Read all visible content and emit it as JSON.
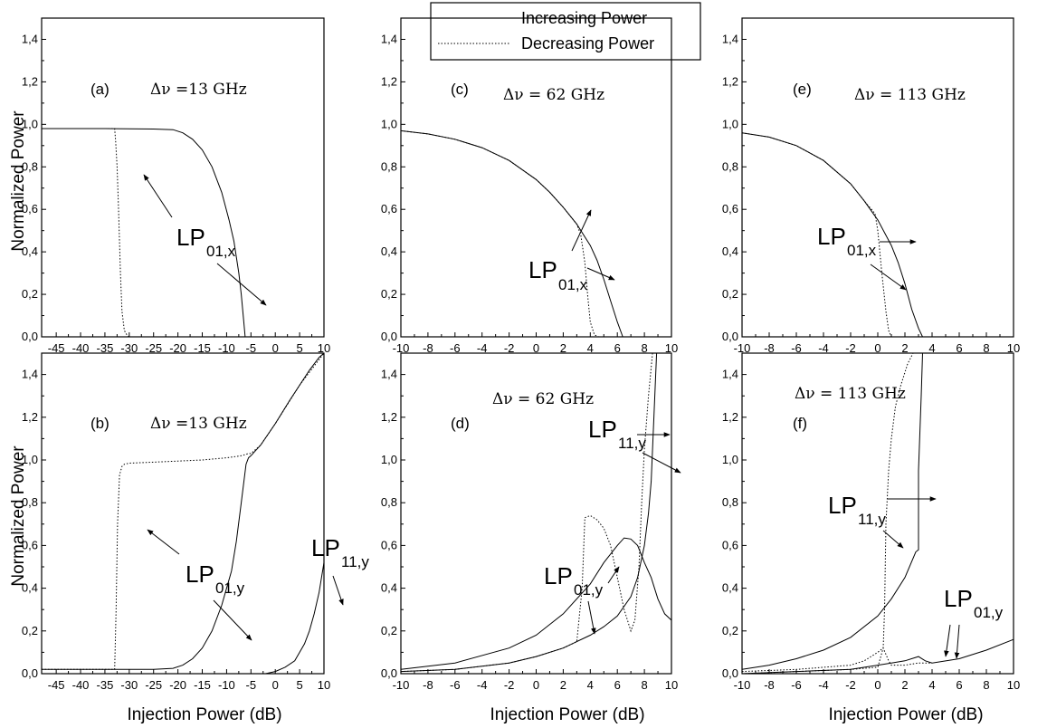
{
  "legend": {
    "entries": [
      {
        "label": "Increasing Power",
        "style": "solid"
      },
      {
        "label": "Decreasing Power",
        "style": "dotted"
      }
    ]
  },
  "chart_data": [
    {
      "id": "a",
      "type": "line",
      "tag": "(a)",
      "dnu_label": "Δν =13 GHz",
      "xlim": [
        -48,
        10
      ],
      "ylim": [
        0,
        1.5
      ],
      "xticks": [
        -45,
        -40,
        -35,
        -30,
        -25,
        -20,
        -15,
        -10,
        -5,
        0,
        5,
        10
      ],
      "xticklabels": [
        "-45",
        "-40",
        "-35",
        "-30",
        "-25",
        "-20",
        "-15",
        "-10",
        "-5",
        "0",
        "5",
        "10"
      ],
      "yticks": [
        0,
        0.2,
        0.4,
        0.6,
        0.8,
        1.0,
        1.2,
        1.4
      ],
      "yticklabels": [
        "0,0",
        "0,2",
        "0,4",
        "0,6",
        "0,8",
        "1,0",
        "1,2",
        "1,4"
      ],
      "ylabel": "Normalized Power",
      "xlabel": "",
      "series": [
        {
          "style": "solid",
          "x": [
            -48,
            -35,
            -25,
            -21,
            -19,
            -17,
            -15,
            -13,
            -11,
            -9.5,
            -8.5,
            -7.5,
            -7,
            -6.5,
            -6.2
          ],
          "y": [
            0.98,
            0.98,
            0.978,
            0.975,
            0.96,
            0.93,
            0.88,
            0.8,
            0.68,
            0.55,
            0.45,
            0.3,
            0.2,
            0.08,
            0.0
          ]
        },
        {
          "style": "dotted",
          "x": [
            -48,
            -33,
            -32.8,
            -32.5,
            -32.2,
            -31.8,
            -31.5,
            -31,
            -30.5,
            -30
          ],
          "y": [
            0.98,
            0.98,
            0.92,
            0.8,
            0.6,
            0.3,
            0.12,
            0.03,
            0.01,
            0.0
          ]
        }
      ],
      "annotations": [
        {
          "text": "LP",
          "sub": "01,x"
        }
      ]
    },
    {
      "id": "b",
      "type": "line",
      "tag": "(b)",
      "dnu_label": "Δν =13 GHz",
      "xlim": [
        -48,
        10
      ],
      "ylim": [
        0,
        1.5
      ],
      "xticks": [
        -45,
        -40,
        -35,
        -30,
        -25,
        -20,
        -15,
        -10,
        -5,
        0,
        5,
        10
      ],
      "xticklabels": [
        "-45",
        "-40",
        "-35",
        "-30",
        "-25",
        "-20",
        "-15",
        "-10",
        "-5",
        "0",
        "5",
        "10"
      ],
      "yticks": [
        0,
        0.2,
        0.4,
        0.6,
        0.8,
        1.0,
        1.2,
        1.4
      ],
      "yticklabels": [
        "0,0",
        "0,2",
        "0,4",
        "0,6",
        "0,8",
        "1,0",
        "1,2",
        "1,4"
      ],
      "ylabel": "Normalized Power",
      "xlabel": "Injection Power (dB)",
      "series": [
        {
          "style": "solid",
          "x": [
            -48,
            -25,
            -21,
            -19,
            -17,
            -15,
            -13,
            -11,
            -9,
            -8,
            -7,
            -6,
            -5.5,
            -5,
            -3,
            0,
            3,
            5,
            7,
            9,
            10
          ],
          "y": [
            0.02,
            0.02,
            0.025,
            0.04,
            0.07,
            0.12,
            0.2,
            0.32,
            0.48,
            0.62,
            0.8,
            0.98,
            1.01,
            1.02,
            1.07,
            1.17,
            1.28,
            1.35,
            1.42,
            1.48,
            1.5
          ]
        },
        {
          "style": "dotted",
          "x": [
            -48,
            -33,
            -32.7,
            -32.4,
            -32,
            -31.5,
            -31,
            -30,
            -25,
            -20,
            -15,
            -10,
            -7,
            -5.5,
            -5,
            -3,
            0,
            5,
            10
          ],
          "y": [
            0.02,
            0.02,
            0.3,
            0.7,
            0.93,
            0.97,
            0.98,
            0.985,
            0.99,
            0.995,
            1.0,
            1.01,
            1.02,
            1.03,
            1.03,
            1.07,
            1.17,
            1.35,
            1.5
          ]
        },
        {
          "style": "solid",
          "x": [
            -48,
            -2,
            0,
            2,
            4,
            5,
            6,
            7,
            8,
            9,
            10
          ],
          "y": [
            0.0,
            0.0,
            0.01,
            0.03,
            0.06,
            0.1,
            0.14,
            0.2,
            0.28,
            0.38,
            0.52
          ]
        }
      ],
      "annotations": [
        {
          "text": "LP",
          "sub": "01,y"
        },
        {
          "text": "LP",
          "sub": "11,y"
        }
      ]
    },
    {
      "id": "c",
      "type": "line",
      "tag": "(c)",
      "dnu_label": "Δν = 62 GHz",
      "xlim": [
        -10,
        10
      ],
      "ylim": [
        0,
        1.5
      ],
      "xticks": [
        -10,
        -8,
        -6,
        -4,
        -2,
        0,
        2,
        4,
        6,
        8,
        10
      ],
      "xticklabels": [
        "-10",
        "-8",
        "-6",
        "-4",
        "-2",
        "0",
        "2",
        "4",
        "6",
        "8",
        "10"
      ],
      "yticks": [
        0,
        0.2,
        0.4,
        0.6,
        0.8,
        1.0,
        1.2,
        1.4
      ],
      "yticklabels": [
        "0,0",
        "0,2",
        "0,4",
        "0,6",
        "0,8",
        "1,0",
        "1,2",
        "1,4"
      ],
      "ylabel": "",
      "xlabel": "",
      "series": [
        {
          "style": "solid",
          "x": [
            -10,
            -8,
            -6,
            -4,
            -2,
            0,
            1,
            2,
            3,
            4,
            4.5,
            5,
            5.5,
            6,
            6.4
          ],
          "y": [
            0.97,
            0.955,
            0.93,
            0.89,
            0.83,
            0.74,
            0.68,
            0.61,
            0.53,
            0.43,
            0.36,
            0.27,
            0.17,
            0.07,
            0.0
          ]
        },
        {
          "style": "dotted",
          "x": [
            -10,
            -8,
            -6,
            -4,
            -2,
            0,
            1,
            2,
            3,
            3.3,
            3.6,
            3.8,
            4,
            4.3,
            4.6
          ],
          "y": [
            0.97,
            0.955,
            0.93,
            0.89,
            0.83,
            0.74,
            0.68,
            0.61,
            0.53,
            0.48,
            0.35,
            0.2,
            0.07,
            0.01,
            0.0
          ]
        }
      ],
      "annotations": [
        {
          "text": "LP",
          "sub": "01,x"
        }
      ]
    },
    {
      "id": "d",
      "type": "line",
      "tag": "(d)",
      "dnu_label": "Δν = 62 GHz",
      "xlim": [
        -10,
        10
      ],
      "ylim": [
        0,
        1.5
      ],
      "xticks": [
        -10,
        -8,
        -6,
        -4,
        -2,
        0,
        2,
        4,
        6,
        8,
        10
      ],
      "xticklabels": [
        "-10",
        "-8",
        "-6",
        "-4",
        "-2",
        "0",
        "2",
        "4",
        "6",
        "8",
        "10"
      ],
      "yticks": [
        0,
        0.2,
        0.4,
        0.6,
        0.8,
        1.0,
        1.2,
        1.4
      ],
      "yticklabels": [
        "0,0",
        "0,2",
        "0,4",
        "0,6",
        "0,8",
        "1,0",
        "1,2",
        "1,4"
      ],
      "ylabel": "",
      "xlabel": "Injection Power (dB)",
      "series": [
        {
          "style": "solid",
          "x": [
            -10,
            -6,
            -2,
            0,
            2,
            4,
            5,
            6,
            6.5,
            7,
            7.5,
            8,
            8.5,
            9,
            9.5,
            10
          ],
          "y": [
            0.02,
            0.05,
            0.12,
            0.18,
            0.28,
            0.42,
            0.52,
            0.6,
            0.635,
            0.63,
            0.6,
            0.52,
            0.45,
            0.35,
            0.28,
            0.25
          ]
        },
        {
          "style": "solid",
          "x": [
            -10,
            -6,
            -2,
            0,
            2,
            4,
            5,
            6,
            7,
            7.5,
            8,
            8.3,
            8.5,
            8.7,
            8.9
          ],
          "y": [
            0.01,
            0.02,
            0.05,
            0.08,
            0.12,
            0.18,
            0.22,
            0.27,
            0.36,
            0.45,
            0.6,
            0.75,
            0.9,
            1.2,
            1.5
          ]
        },
        {
          "style": "dotted",
          "x": [
            -10,
            -6,
            -2,
            0,
            2,
            3,
            3.4,
            3.6,
            4,
            4.5,
            5,
            5.5,
            6,
            6.5,
            7,
            7.3,
            7.6,
            7.8,
            8,
            8.3,
            8.6
          ],
          "y": [
            0.01,
            0.02,
            0.05,
            0.08,
            0.12,
            0.15,
            0.4,
            0.73,
            0.74,
            0.72,
            0.68,
            0.6,
            0.45,
            0.3,
            0.2,
            0.25,
            0.5,
            0.8,
            1.05,
            1.3,
            1.5
          ]
        }
      ],
      "annotations": [
        {
          "text": "LP",
          "sub": "11,y"
        },
        {
          "text": "LP",
          "sub": "01,y"
        }
      ]
    },
    {
      "id": "e",
      "type": "line",
      "tag": "(e)",
      "dnu_label": "Δν = 113 GHz",
      "xlim": [
        -10,
        10
      ],
      "ylim": [
        0,
        1.5
      ],
      "xticks": [
        -10,
        -8,
        -6,
        -4,
        -2,
        0,
        2,
        4,
        6,
        8,
        10
      ],
      "xticklabels": [
        "-10",
        "-8",
        "-6",
        "-4",
        "-2",
        "0",
        "2",
        "4",
        "6",
        "8",
        "10"
      ],
      "yticks": [
        0,
        0.2,
        0.4,
        0.6,
        0.8,
        1.0,
        1.2,
        1.4
      ],
      "yticklabels": [
        "0,0",
        "0,2",
        "0,4",
        "0,6",
        "0,8",
        "1,0",
        "1,2",
        "1,4"
      ],
      "ylabel": "",
      "xlabel": "",
      "series": [
        {
          "style": "solid",
          "x": [
            -10,
            -8,
            -6,
            -4,
            -2,
            -1,
            0,
            1,
            1.5,
            2,
            2.5,
            3,
            3.3
          ],
          "y": [
            0.96,
            0.94,
            0.9,
            0.83,
            0.72,
            0.64,
            0.55,
            0.43,
            0.35,
            0.25,
            0.13,
            0.04,
            0.0
          ]
        },
        {
          "style": "dotted",
          "x": [
            -10,
            -8,
            -6,
            -4,
            -2,
            -1,
            -0.2,
            0,
            0.3,
            0.6,
            0.8,
            1
          ],
          "y": [
            0.96,
            0.94,
            0.9,
            0.83,
            0.72,
            0.64,
            0.58,
            0.5,
            0.3,
            0.12,
            0.03,
            0.0
          ]
        }
      ],
      "annotations": [
        {
          "text": "LP",
          "sub": "01,x"
        }
      ]
    },
    {
      "id": "f",
      "type": "line",
      "tag": "(f)",
      "dnu_label": "Δν = 113 GHz",
      "xlim": [
        -10,
        10
      ],
      "ylim": [
        0,
        1.5
      ],
      "xticks": [
        -10,
        -8,
        -6,
        -4,
        -2,
        0,
        2,
        4,
        6,
        8,
        10
      ],
      "xticklabels": [
        "-10",
        "-8",
        "-6",
        "-4",
        "-2",
        "0",
        "2",
        "4",
        "6",
        "8",
        "10"
      ],
      "yticks": [
        0,
        0.2,
        0.4,
        0.6,
        0.8,
        1.0,
        1.2,
        1.4
      ],
      "yticklabels": [
        "0,0",
        "0,2",
        "0,4",
        "0,6",
        "0,8",
        "1,0",
        "1,2",
        "1,4"
      ],
      "ylabel": "",
      "xlabel": "Injection Power (dB)",
      "series": [
        {
          "style": "solid",
          "x": [
            -10,
            -8,
            -6,
            -4,
            -2,
            0,
            1,
            2,
            2.8,
            3,
            3,
            3.2,
            3.3
          ],
          "y": [
            0.02,
            0.04,
            0.07,
            0.11,
            0.17,
            0.27,
            0.35,
            0.45,
            0.57,
            0.58,
            0.95,
            1.3,
            1.5
          ]
        },
        {
          "style": "dotted",
          "x": [
            -10,
            -6,
            -2,
            -1,
            0,
            0.4,
            0.5,
            0.6,
            0.8,
            1,
            1.3,
            1.7,
            2.2,
            2.6
          ],
          "y": [
            0.01,
            0.02,
            0.04,
            0.06,
            0.1,
            0.12,
            0.3,
            0.7,
            0.95,
            1.1,
            1.25,
            1.35,
            1.45,
            1.5
          ]
        },
        {
          "style": "solid",
          "x": [
            -10,
            -6,
            -2,
            0,
            1,
            2,
            3,
            3.5,
            4,
            6,
            8,
            10
          ],
          "y": [
            0.0,
            0.01,
            0.02,
            0.04,
            0.05,
            0.06,
            0.08,
            0.06,
            0.05,
            0.07,
            0.11,
            0.16
          ]
        },
        {
          "style": "dotted",
          "x": [
            -10,
            -2,
            0,
            0.4,
            0.8,
            1,
            2,
            3,
            4
          ],
          "y": [
            0.0,
            0.02,
            0.03,
            0.12,
            0.06,
            0.04,
            0.04,
            0.05,
            0.05
          ]
        }
      ],
      "annotations": [
        {
          "text": "LP",
          "sub": "11,y"
        },
        {
          "text": "LP",
          "sub": "01,y"
        }
      ]
    }
  ]
}
